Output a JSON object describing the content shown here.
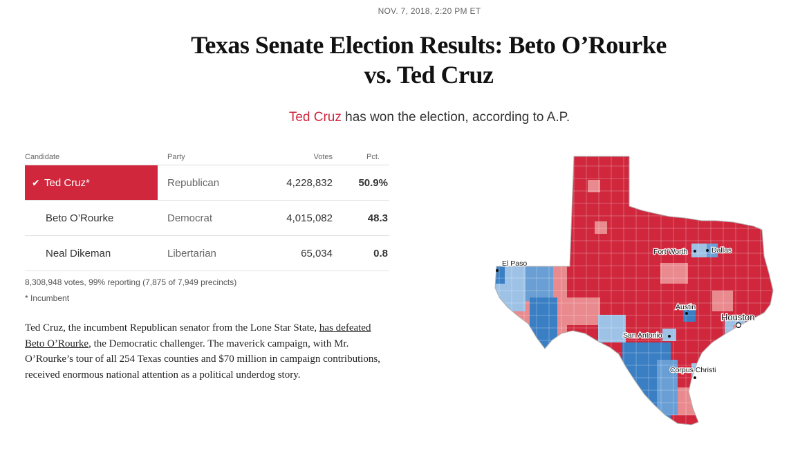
{
  "dateline": "NOV. 7, 2018, 2:20 PM ET",
  "headline": {
    "line1": "Texas Senate Election Results: Beto O’Rourke",
    "line2": "vs. Ted Cruz"
  },
  "status": {
    "winner": "Ted Cruz",
    "text": " has won the election, according to A.P."
  },
  "table": {
    "headers": {
      "candidate": "Candidate",
      "party": "Party",
      "votes": "Votes",
      "pct": "Pct."
    },
    "rows": [
      {
        "candidate": "Ted Cruz*",
        "party": "Republican",
        "votes": "4,228,832",
        "pct": "50.9%",
        "winner": true
      },
      {
        "candidate": "Beto O’Rourke",
        "party": "Democrat",
        "votes": "4,015,082",
        "pct": "48.3",
        "winner": false
      },
      {
        "candidate": "Neal Dikeman",
        "party": "Libertarian",
        "votes": "65,034",
        "pct": "0.8",
        "winner": false
      }
    ]
  },
  "footnotes": {
    "reporting": "8,308,948 votes, 99% reporting (7,875 of 7,949 precincts)",
    "incumbent": "* Incumbent"
  },
  "story": {
    "part1": "Ted Cruz, the incumbent Republican senator from the Lone Star State, ",
    "link": "has defeated Beto O’Rourke",
    "part2": ", the Democratic challenger. The maverick campaign, with Mr. O’Rourke’s tour of all 254 Texas counties and $70 million in campaign contributions, received enormous national attention as a political underdog story."
  },
  "map": {
    "cities": {
      "el_paso": "El Paso",
      "fort_worth": "Fort Worth",
      "dallas": "Dallas",
      "austin": "Austin",
      "houston": "Houston",
      "san_antonio": "San Antonio",
      "corpus_christi": "Corpus Christi"
    },
    "colors": {
      "republican_strong": "#d0273d",
      "republican_lean": "#e98a8f",
      "democrat_strong": "#3a7fc4",
      "democrat_lean": "#9ec2e6"
    }
  }
}
